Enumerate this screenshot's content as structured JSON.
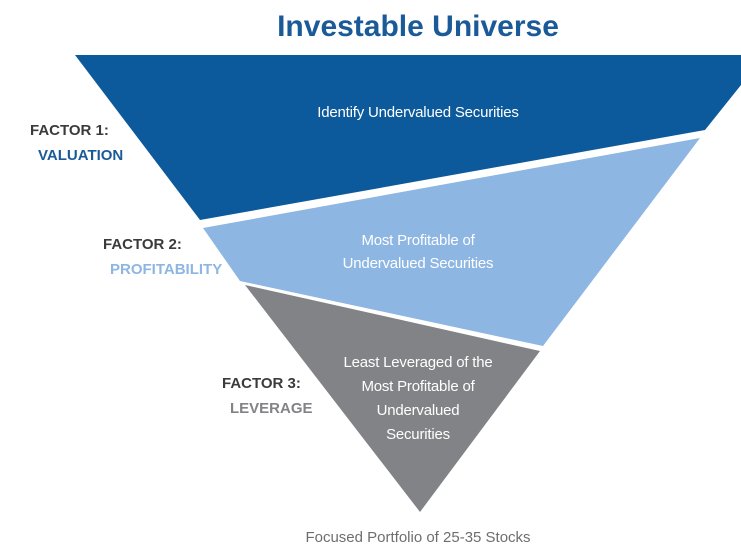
{
  "title": "Investable Universe",
  "factors": [
    {
      "label": "FACTOR 1:",
      "name": "VALUATION"
    },
    {
      "label": "FACTOR 2:",
      "name": "PROFITABILITY"
    },
    {
      "label": "FACTOR 3:",
      "name": "LEVERAGE"
    }
  ],
  "levels": [
    {
      "lines": [
        "Identify Undervalued Securities"
      ]
    },
    {
      "lines": [
        "Most Profitable of",
        "Undervalued Securities"
      ]
    },
    {
      "lines": [
        "Least Leveraged of the",
        "Most Profitable of",
        "Undervalued",
        "Securities"
      ]
    }
  ],
  "footer": "Focused Portfolio of 25-35 Stocks"
}
